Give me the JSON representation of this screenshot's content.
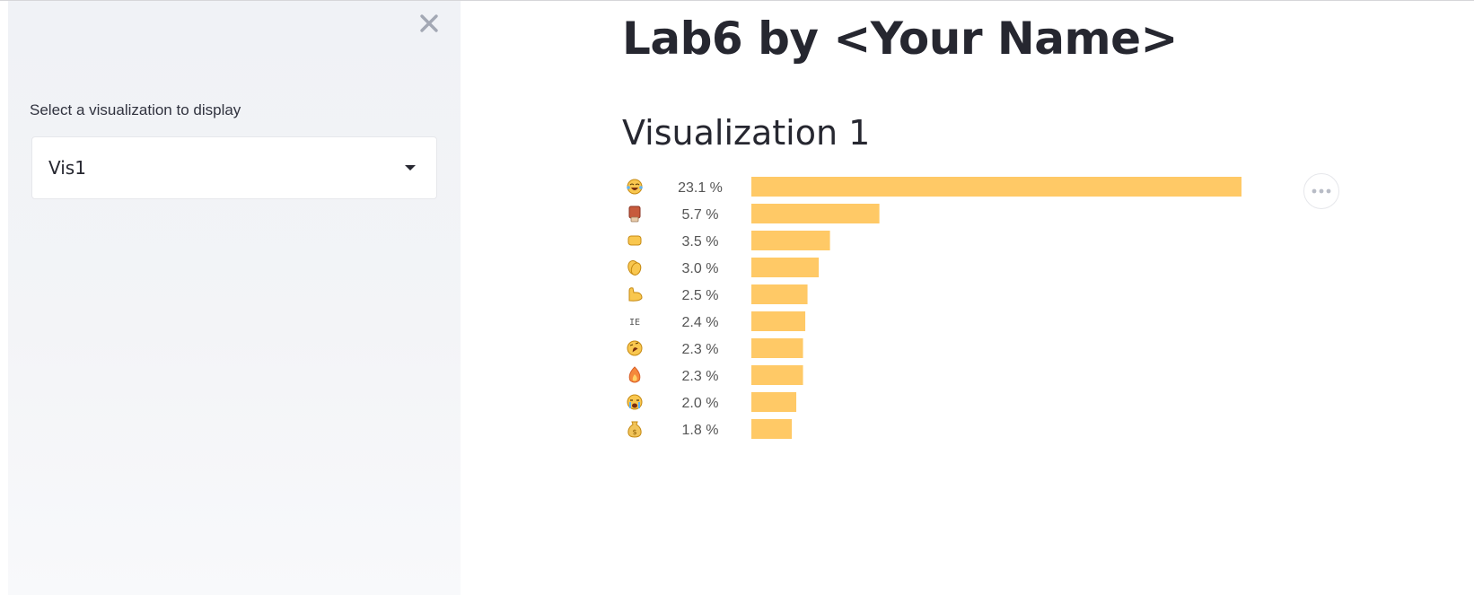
{
  "sidebar": {
    "select_label": "Select a visualization to display",
    "select_value": "Vis1",
    "close_icon": "close-icon",
    "caret_icon": "caret-down-icon"
  },
  "main": {
    "title": "Lab6 by <Your Name>",
    "subtitle": "Visualization 1",
    "menu_icon": "more-horizontal-icon"
  },
  "colors": {
    "bar": "#ffc966",
    "sidebar_bg": "#f0f2f6",
    "text": "#262730",
    "label_text": "#555555"
  },
  "chart_data": {
    "type": "bar",
    "orientation": "horizontal",
    "categories": [
      "face with tears of joy",
      "oncoming fist",
      "raised fist",
      "clapping hands",
      "flexed biceps",
      "IE",
      "rolling on the floor laughing",
      "fire",
      "loudly crying face",
      "money bag"
    ],
    "values": [
      23.1,
      5.7,
      3.5,
      3.0,
      2.5,
      2.4,
      2.3,
      2.3,
      2.0,
      1.8
    ],
    "value_labels": [
      "23.1 %",
      "5.7 %",
      "3.5 %",
      "3.0 %",
      "2.5 %",
      "2.4 %",
      "2.3 %",
      "2.3 %",
      "2.0 %",
      "1.8 %"
    ],
    "row_icons": [
      "joy-icon",
      "fist-icon",
      "fist-icon",
      "clap-icon",
      "muscle-icon",
      "text-icon",
      "rofl-icon",
      "fire-icon",
      "sob-icon",
      "moneybag-icon"
    ],
    "row_text": [
      "",
      "",
      "",
      "",
      "",
      "IE",
      "",
      "",
      "",
      ""
    ],
    "xlim": [
      0,
      23.1
    ]
  }
}
